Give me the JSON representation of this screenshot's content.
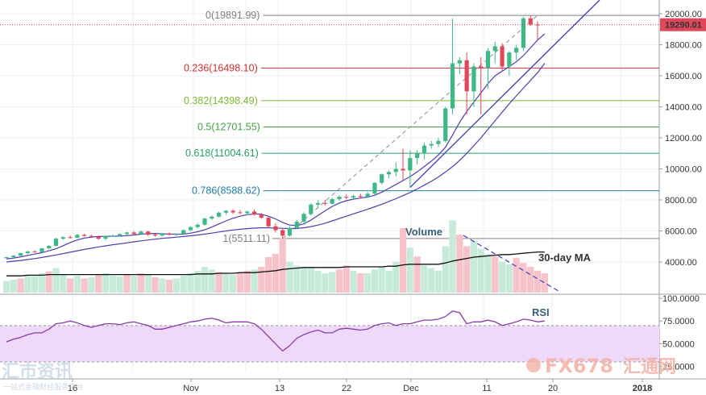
{
  "chart_data": {
    "type": "candlestick",
    "instrument": "BTC/USD",
    "price_axis": {
      "ticks": [
        "20000.00",
        "18000.00",
        "16000.00",
        "14000.00",
        "12000.00",
        "10000.00",
        "8000.00",
        "6000.00",
        "4000.00"
      ],
      "range": [
        2100,
        21000
      ]
    },
    "x_axis_ticks": [
      "16",
      "Nov",
      "13",
      "22",
      "Dec",
      "11",
      "20",
      "2018"
    ],
    "current_price_label": "19290.01",
    "current_price": 19290.01,
    "fibonacci_levels": [
      {
        "label": "0(19891.99)",
        "value": 19891.99,
        "color": "#7f7f7f"
      },
      {
        "label": "0.236(16498.10)",
        "value": 16498.1,
        "color": "#d0312d"
      },
      {
        "label": "0.382(14398.49)",
        "value": 14398.49,
        "color": "#7cb82f"
      },
      {
        "label": "0.5(12701.55)",
        "value": 12701.55,
        "color": "#43a047"
      },
      {
        "label": "0.618(11004.61)",
        "value": 11004.61,
        "color": "#26a06a"
      },
      {
        "label": "0.786(8588.62)",
        "value": 8588.62,
        "color": "#1f7fa8"
      },
      {
        "label": "1(5511.11)",
        "value": 5511.11,
        "color": "#7f7f7f"
      }
    ],
    "candles": [
      [
        4250,
        4330,
        4200,
        4310
      ],
      [
        4310,
        4450,
        4260,
        4410
      ],
      [
        4410,
        4600,
        4390,
        4570
      ],
      [
        4570,
        4720,
        4520,
        4680
      ],
      [
        4680,
        4750,
        4600,
        4640
      ],
      [
        4640,
        4900,
        4620,
        4880
      ],
      [
        4880,
        5080,
        4850,
        5040
      ],
      [
        5040,
        5560,
        5000,
        5500
      ],
      [
        5500,
        5650,
        5420,
        5600
      ],
      [
        5600,
        5700,
        5500,
        5560
      ],
      [
        5560,
        5800,
        5540,
        5750
      ],
      [
        5750,
        5820,
        5640,
        5680
      ],
      [
        5680,
        5760,
        5560,
        5620
      ],
      [
        5620,
        5700,
        5440,
        5500
      ],
      [
        5500,
        5720,
        5380,
        5680
      ],
      [
        5680,
        5780,
        5620,
        5700
      ],
      [
        5700,
        5840,
        5640,
        5800
      ],
      [
        5800,
        5950,
        5700,
        5900
      ],
      [
        5900,
        5980,
        5740,
        5800
      ],
      [
        5800,
        6020,
        5740,
        5960
      ],
      [
        5960,
        6000,
        5680,
        5760
      ],
      [
        5760,
        5820,
        5640,
        5700
      ],
      [
        5700,
        5880,
        5650,
        5840
      ],
      [
        5840,
        5900,
        5700,
        5760
      ],
      [
        5760,
        5850,
        5680,
        5800
      ],
      [
        5800,
        6100,
        5780,
        6050
      ],
      [
        6050,
        6300,
        6000,
        6250
      ],
      [
        6250,
        6500,
        6150,
        6400
      ],
      [
        6400,
        6850,
        6350,
        6800
      ],
      [
        6800,
        7000,
        6700,
        6920
      ],
      [
        6920,
        7250,
        6880,
        7180
      ],
      [
        7180,
        7350,
        7050,
        7300
      ],
      [
        7300,
        7400,
        7100,
        7200
      ],
      [
        7200,
        7350,
        7080,
        7150
      ],
      [
        7150,
        7300,
        7020,
        7250
      ],
      [
        7250,
        7400,
        7000,
        7050
      ],
      [
        7050,
        7150,
        6800,
        6850
      ],
      [
        6850,
        6900,
        6200,
        6300
      ],
      [
        6300,
        6500,
        5900,
        6050
      ],
      [
        6050,
        6150,
        5511,
        5700
      ],
      [
        5700,
        6300,
        5650,
        6200
      ],
      [
        6200,
        6700,
        6100,
        6600
      ],
      [
        6600,
        7200,
        6500,
        7100
      ],
      [
        7100,
        7800,
        7000,
        7700
      ],
      [
        7700,
        8000,
        7500,
        7800
      ],
      [
        7800,
        8000,
        7650,
        7750
      ],
      [
        7750,
        8150,
        7700,
        8050
      ],
      [
        8050,
        8300,
        7950,
        8200
      ],
      [
        8200,
        8350,
        8050,
        8150
      ],
      [
        8150,
        8350,
        8000,
        8250
      ],
      [
        8250,
        8400,
        8100,
        8200
      ],
      [
        8200,
        8500,
        8150,
        8400
      ],
      [
        8400,
        9150,
        8300,
        9100
      ],
      [
        9100,
        9700,
        9000,
        9650
      ],
      [
        9650,
        9900,
        9400,
        9800
      ],
      [
        9800,
        10400,
        9500,
        10000
      ],
      [
        10000,
        11300,
        9200,
        9900
      ],
      [
        9900,
        11200,
        8800,
        10700
      ],
      [
        10700,
        11200,
        10300,
        11000
      ],
      [
        11000,
        11700,
        10600,
        11500
      ],
      [
        11500,
        11800,
        11300,
        11600
      ],
      [
        11600,
        12000,
        11400,
        11800
      ],
      [
        11800,
        14000,
        11700,
        13900
      ],
      [
        13900,
        19700,
        13500,
        16800
      ],
      [
        16800,
        17200,
        16100,
        17000
      ],
      [
        17000,
        17500,
        13500,
        15000
      ],
      [
        15000,
        16800,
        14000,
        16600
      ],
      [
        16600,
        17200,
        13500,
        16500
      ],
      [
        16500,
        17800,
        15200,
        17600
      ],
      [
        17600,
        18200,
        16800,
        17900
      ],
      [
        17900,
        18100,
        16300,
        16600
      ],
      [
        16600,
        17600,
        16000,
        17500
      ],
      [
        17500,
        18000,
        17000,
        17800
      ],
      [
        17800,
        19800,
        17600,
        19700
      ],
      [
        19700,
        19892,
        19200,
        19300
      ],
      [
        19300,
        19500,
        18300,
        19290
      ]
    ],
    "sma_fast": [
      4200,
      4250,
      4330,
      4420,
      4510,
      4600,
      4720,
      4850,
      5050,
      5250,
      5420,
      5540,
      5600,
      5640,
      5650,
      5660,
      5670,
      5700,
      5740,
      5790,
      5830,
      5840,
      5820,
      5800,
      5790,
      5800,
      5860,
      5950,
      6080,
      6250,
      6450,
      6650,
      6820,
      6950,
      7050,
      7100,
      7080,
      6950,
      6780,
      6550,
      6380,
      6350,
      6450,
      6700,
      7000,
      7300,
      7580,
      7800,
      7950,
      8050,
      8120,
      8180,
      8300,
      8500,
      8750,
      9000,
      9250,
      9500,
      9800,
      10150,
      10500,
      10900,
      11400,
      12200,
      13000,
      13700,
      14300,
      14900,
      15500,
      16000,
      16300,
      16600,
      16900,
      17300,
      17800,
      18300,
      18700
    ],
    "sma_slow": [
      4000,
      4050,
      4100,
      4160,
      4220,
      4290,
      4370,
      4450,
      4540,
      4630,
      4720,
      4810,
      4890,
      4970,
      5040,
      5110,
      5170,
      5230,
      5300,
      5360,
      5420,
      5470,
      5520,
      5560,
      5600,
      5640,
      5690,
      5740,
      5800,
      5860,
      5930,
      6000,
      6060,
      6110,
      6150,
      6180,
      6200,
      6200,
      6190,
      6170,
      6150,
      6160,
      6200,
      6280,
      6380,
      6500,
      6650,
      6800,
      6950,
      7100,
      7250,
      7400,
      7560,
      7720,
      7900,
      8080,
      8280,
      8480,
      8700,
      8950,
      9200,
      9480,
      9800,
      10150,
      10550,
      11000,
      11500,
      12000,
      12550,
      13100,
      13650,
      14200,
      14700,
      15200,
      15700,
      16200,
      16800
    ],
    "volume": [
      {
        "v": 18,
        "up": true
      },
      {
        "v": 20,
        "up": true
      },
      {
        "v": 22,
        "up": false
      },
      {
        "v": 28,
        "up": true
      },
      {
        "v": 26,
        "up": true
      },
      {
        "v": 30,
        "up": true
      },
      {
        "v": 33,
        "up": false
      },
      {
        "v": 38,
        "up": true
      },
      {
        "v": 28,
        "up": true
      },
      {
        "v": 22,
        "up": false
      },
      {
        "v": 26,
        "up": true
      },
      {
        "v": 22,
        "up": false
      },
      {
        "v": 24,
        "up": true
      },
      {
        "v": 28,
        "up": false
      },
      {
        "v": 30,
        "up": true
      },
      {
        "v": 26,
        "up": true
      },
      {
        "v": 25,
        "up": true
      },
      {
        "v": 28,
        "up": false
      },
      {
        "v": 26,
        "up": true
      },
      {
        "v": 30,
        "up": false
      },
      {
        "v": 28,
        "up": true
      },
      {
        "v": 24,
        "up": false
      },
      {
        "v": 22,
        "up": true
      },
      {
        "v": 20,
        "up": false
      },
      {
        "v": 22,
        "up": true
      },
      {
        "v": 26,
        "up": true
      },
      {
        "v": 30,
        "up": true
      },
      {
        "v": 34,
        "up": true
      },
      {
        "v": 40,
        "up": true
      },
      {
        "v": 36,
        "up": true
      },
      {
        "v": 32,
        "up": false
      },
      {
        "v": 30,
        "up": true
      },
      {
        "v": 28,
        "up": true
      },
      {
        "v": 30,
        "up": false
      },
      {
        "v": 34,
        "up": false
      },
      {
        "v": 36,
        "up": true
      },
      {
        "v": 40,
        "up": false
      },
      {
        "v": 55,
        "up": false
      },
      {
        "v": 60,
        "up": false
      },
      {
        "v": 85,
        "up": false
      },
      {
        "v": 48,
        "up": true
      },
      {
        "v": 42,
        "up": true
      },
      {
        "v": 40,
        "up": true
      },
      {
        "v": 38,
        "up": true
      },
      {
        "v": 34,
        "up": true
      },
      {
        "v": 30,
        "up": true
      },
      {
        "v": 32,
        "up": true
      },
      {
        "v": 36,
        "up": false
      },
      {
        "v": 42,
        "up": false
      },
      {
        "v": 34,
        "up": true
      },
      {
        "v": 30,
        "up": false
      },
      {
        "v": 30,
        "up": true
      },
      {
        "v": 36,
        "up": true
      },
      {
        "v": 40,
        "up": true
      },
      {
        "v": 34,
        "up": true
      },
      {
        "v": 48,
        "up": true
      },
      {
        "v": 100,
        "up": false
      },
      {
        "v": 70,
        "up": true
      },
      {
        "v": 56,
        "up": false
      },
      {
        "v": 42,
        "up": true
      },
      {
        "v": 38,
        "up": true
      },
      {
        "v": 34,
        "up": true
      },
      {
        "v": 72,
        "up": true
      },
      {
        "v": 112,
        "up": true
      },
      {
        "v": 90,
        "up": false
      },
      {
        "v": 72,
        "up": false
      },
      {
        "v": 80,
        "up": true
      },
      {
        "v": 68,
        "up": true
      },
      {
        "v": 60,
        "up": true
      },
      {
        "v": 56,
        "up": false
      },
      {
        "v": 48,
        "up": true
      },
      {
        "v": 44,
        "up": true
      },
      {
        "v": 54,
        "up": false
      },
      {
        "v": 46,
        "up": false
      },
      {
        "v": 40,
        "up": false
      },
      {
        "v": 34,
        "up": false
      },
      {
        "v": 30,
        "up": false
      }
    ],
    "volume_ma": [
      26,
      26,
      26,
      27,
      27,
      27,
      28,
      28,
      28,
      28,
      28,
      28,
      28,
      28,
      28,
      28,
      28,
      28,
      28,
      28,
      28,
      28,
      28,
      28,
      28,
      28,
      28,
      29,
      29,
      29,
      30,
      30,
      30,
      31,
      31,
      31,
      32,
      33,
      34,
      36,
      37,
      38,
      39,
      39,
      39,
      39,
      39,
      39,
      40,
      40,
      40,
      40,
      40,
      40,
      41,
      41,
      43,
      44,
      44,
      44,
      44,
      44,
      46,
      49,
      51,
      53,
      55,
      56,
      57,
      58,
      59,
      59,
      60,
      61,
      62,
      63,
      63
    ],
    "rsi": [
      52,
      55,
      57,
      60,
      62,
      62,
      66,
      72,
      73,
      75,
      73,
      70,
      68,
      70,
      72,
      72,
      71,
      73,
      74,
      72,
      70,
      66,
      66,
      68,
      70,
      72,
      74,
      75,
      77,
      78,
      76,
      73,
      74,
      74,
      74,
      72,
      66,
      58,
      50,
      42,
      48,
      56,
      60,
      63,
      65,
      62,
      62,
      66,
      67,
      66,
      65,
      66,
      70,
      72,
      73,
      70,
      72,
      72,
      74,
      76,
      76,
      77,
      80,
      86,
      84,
      72,
      74,
      74,
      76,
      74,
      70,
      72,
      74,
      77,
      76,
      74,
      75
    ],
    "rsi_axis": {
      "ticks": [
        "100.0000",
        "75.0000",
        "50.0000",
        "25.0000"
      ],
      "range": [
        14,
        100
      ],
      "band": [
        30,
        70
      ]
    },
    "annotations": {
      "volume": "Volume",
      "volume_ma": "30-day MA",
      "rsi": "RSI"
    },
    "watermarks": {
      "left_main": "汇市资讯",
      "left_sub": "一站式金融财经服务平台",
      "right_brand": "FX678",
      "right_cn": "汇通网"
    },
    "colors": {
      "up": "#3eb887",
      "down": "#e0485a",
      "up_vol": "#c7eadb",
      "down_vol": "#f6c3cb",
      "sma": "#4b3fb0",
      "rsi": "#8a3aa8",
      "rsi_band": "#efd9fa",
      "trend": "#3b3bb5"
    }
  }
}
